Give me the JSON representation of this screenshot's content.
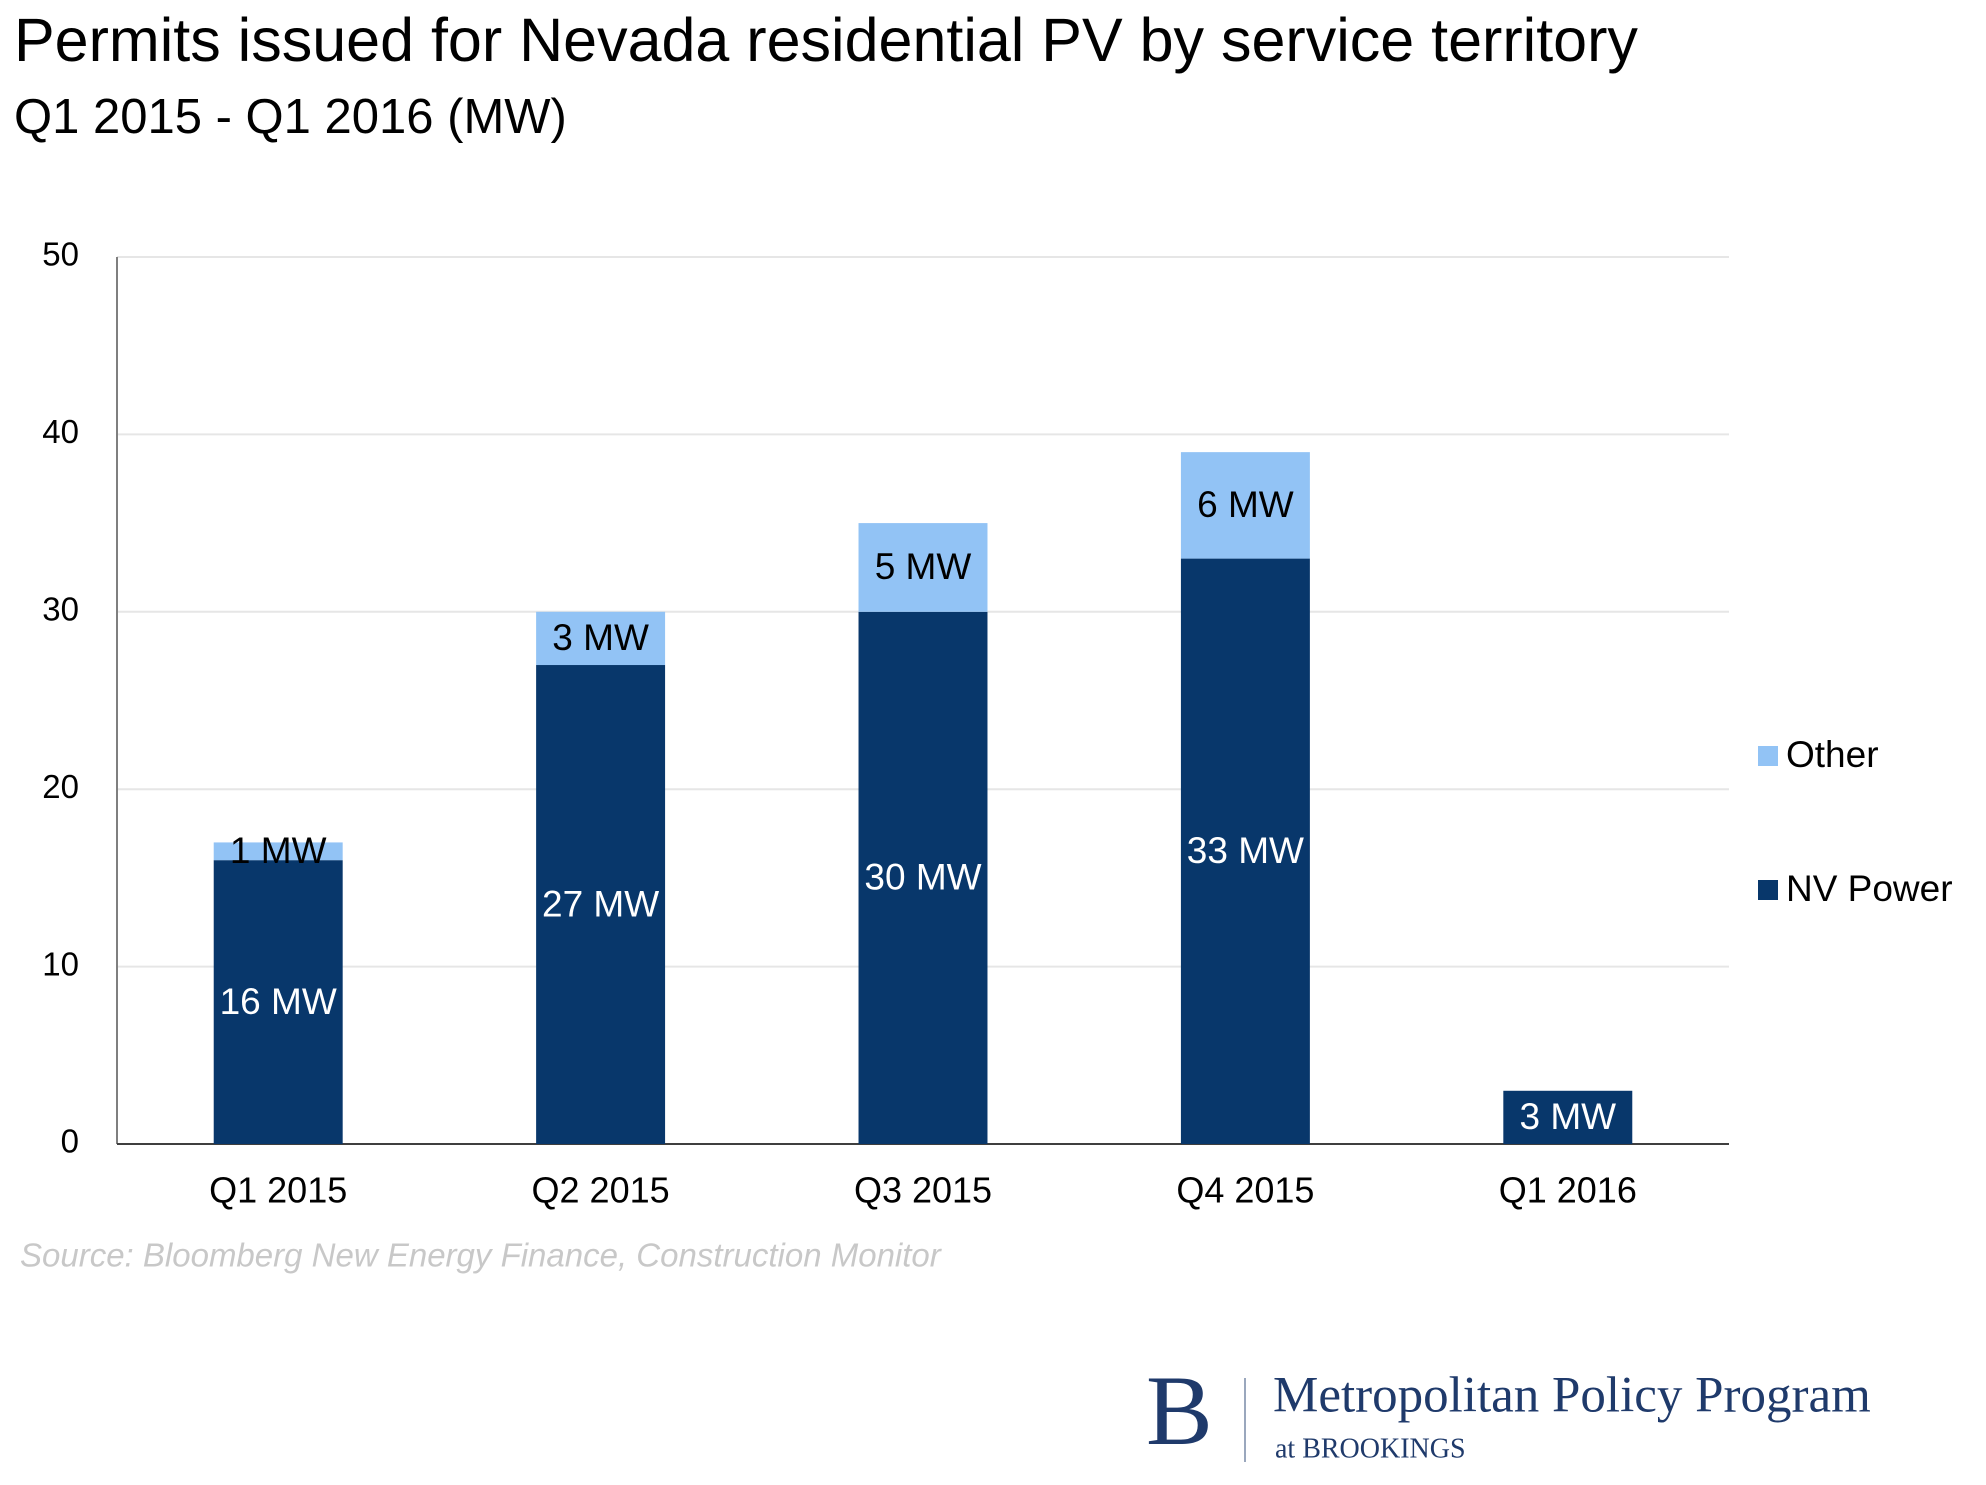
{
  "chart_data": {
    "type": "stacked_bar",
    "title": "Permits issued for Nevada residential PV by service territory",
    "subtitle": "Q1 2015 - Q1 2016 (MW)",
    "categories": [
      "Q1 2015",
      "Q2 2015",
      "Q3 2015",
      "Q4 2015",
      "Q1 2016"
    ],
    "series": [
      {
        "name": "NV Power",
        "color": "#08376b",
        "label_color": "#ffffff",
        "values": [
          16,
          27,
          30,
          33,
          3
        ],
        "value_labels": [
          "16 MW",
          "27 MW",
          "30 MW",
          "33 MW",
          "3 MW"
        ]
      },
      {
        "name": "Other",
        "color": "#92c3f5",
        "label_color": "#000000",
        "values": [
          1,
          3,
          5,
          6,
          null
        ],
        "value_labels": [
          "1 MW",
          "3 MW",
          "5 MW",
          "6 MW",
          null
        ]
      }
    ],
    "ylim": [
      0,
      50
    ],
    "yticks": [
      0,
      10,
      20,
      30,
      40,
      50
    ],
    "grid": true,
    "legend": "right",
    "source": "Source: Bloomberg New Energy Finance, Construction Monitor"
  },
  "logo": {
    "letter": "B",
    "name": "Metropolitan Policy Program",
    "affiliation": "at BROOKINGS"
  }
}
